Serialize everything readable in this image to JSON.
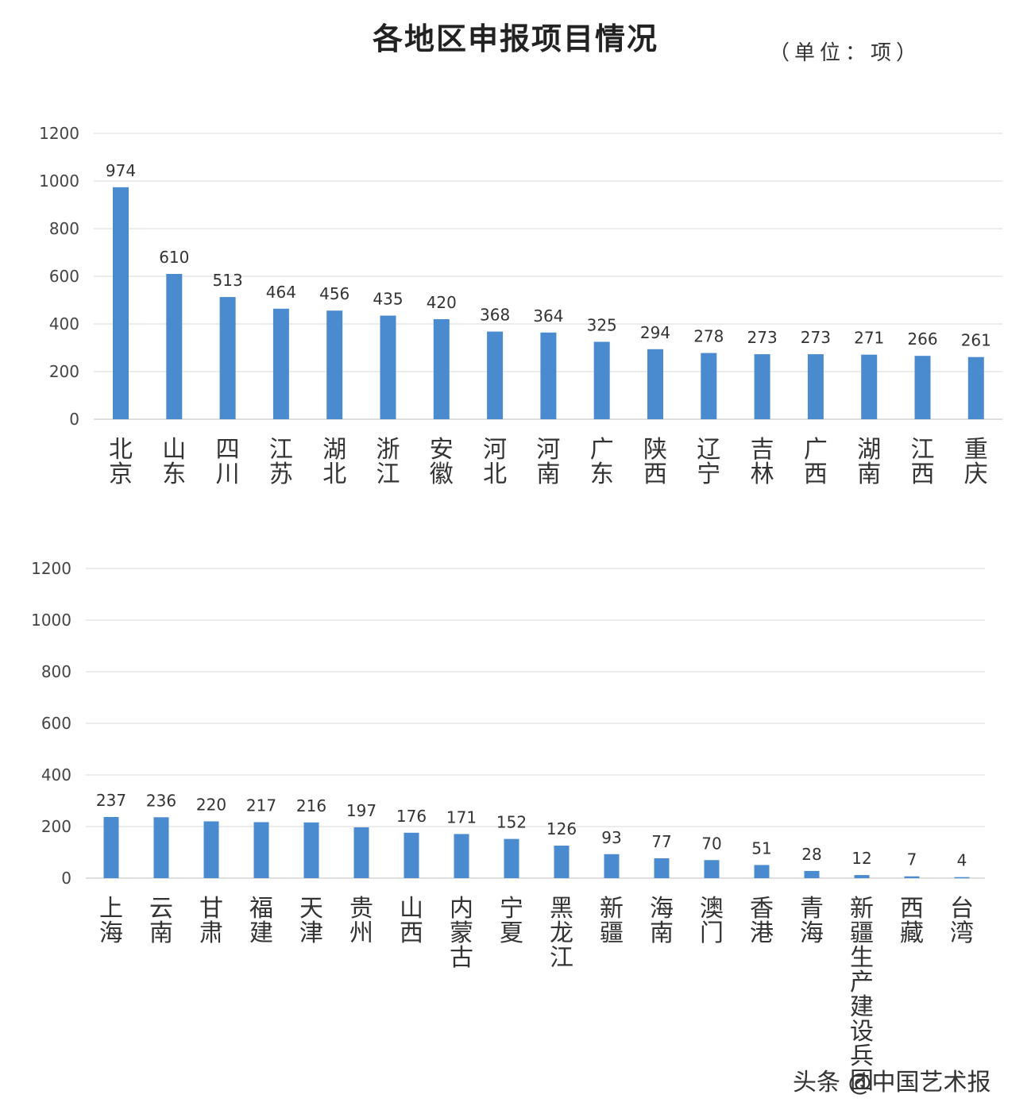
{
  "title": "各地区申报项目情况",
  "unit": "（单位：项）",
  "watermark": "头条 @中国艺术报",
  "chart_data": [
    {
      "type": "bar",
      "categories": [
        "北京",
        "山东",
        "四川",
        "江苏",
        "湖北",
        "浙江",
        "安徽",
        "河北",
        "河南",
        "广东",
        "陕西",
        "辽宁",
        "吉林",
        "广西",
        "湖南",
        "江西",
        "重庆"
      ],
      "values": [
        974,
        610,
        513,
        464,
        456,
        435,
        420,
        368,
        364,
        325,
        294,
        278,
        273,
        273,
        271,
        266,
        261
      ],
      "yticks": [
        0,
        200,
        400,
        600,
        800,
        1000,
        1200
      ],
      "ylim": [
        0,
        1200
      ],
      "grid": true,
      "bar_color": "#4a8bd0"
    },
    {
      "type": "bar",
      "categories": [
        "上海",
        "云南",
        "甘肃",
        "福建",
        "天津",
        "贵州",
        "山西",
        "内蒙古",
        "宁夏",
        "黑龙江",
        "新疆",
        "海南",
        "澳门",
        "香港",
        "青海",
        "新疆生产建设兵团",
        "西藏",
        "台湾"
      ],
      "values": [
        237,
        236,
        220,
        217,
        216,
        197,
        176,
        171,
        152,
        126,
        93,
        77,
        70,
        51,
        28,
        12,
        7,
        4
      ],
      "yticks": [
        0,
        200,
        400,
        600,
        800,
        1000,
        1200
      ],
      "ylim": [
        0,
        1200
      ],
      "grid": true,
      "bar_color": "#4a8bd0"
    }
  ]
}
